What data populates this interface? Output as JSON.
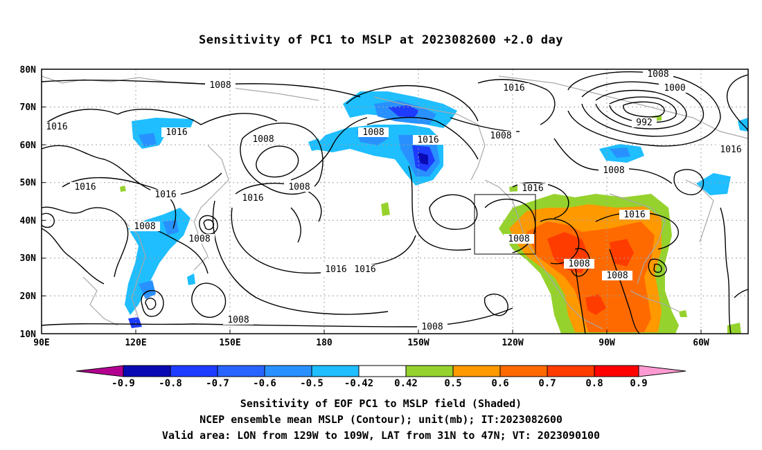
{
  "title": "Sensitivity of PC1 to MSLP at 2023082600 +2.0 day",
  "lat_labels": [
    "80N",
    "70N",
    "60N",
    "50N",
    "40N",
    "30N",
    "20N",
    "10N"
  ],
  "lon_labels": [
    "90E",
    "120E",
    "150E",
    "180",
    "150W",
    "120W",
    "90W",
    "60W"
  ],
  "contour_labels": [
    "1008",
    "1016",
    "1008",
    "1016",
    "1008",
    "1016",
    "1008",
    "1016",
    "1000",
    "992",
    "1008",
    "1016",
    "1008",
    "1016",
    "1008",
    "1016",
    "1016",
    "1008",
    "1016",
    "1008",
    "1008",
    "1016",
    "1008",
    "1016",
    "1016",
    "1008",
    "1008",
    "1008"
  ],
  "colorbar": {
    "labels": [
      "-0.9",
      "-0.8",
      "-0.7",
      "-0.6",
      "-0.5",
      "-0.42",
      "0.42",
      "0.5",
      "0.6",
      "0.7",
      "0.8",
      "0.9"
    ],
    "colors": [
      "#0a0ab4",
      "#1e3cff",
      "#2864ff",
      "#2891ff",
      "#1ebeff",
      "#ffffff",
      "#96d22d",
      "#ff9900",
      "#ff6a00",
      "#ff3c00",
      "#ff0000"
    ],
    "end_low": "#b40090",
    "end_high": "#ff9bd2"
  },
  "captions": [
    "Sensitivity of EOF PC1 to MSLP field (Shaded)",
    "NCEP ensemble mean MSLP (Contour); unit(mb); IT:2023082600",
    "Valid area: LON from 129W to 109W, LAT from 31N to 47N; VT: 2023090100"
  ]
}
